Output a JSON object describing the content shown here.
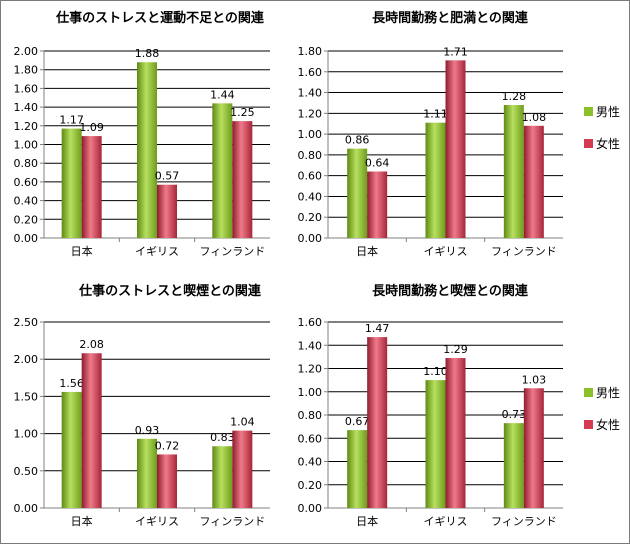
{
  "colors": {
    "male": "#8cc02a",
    "female": "#d43a52",
    "grid": "#000000",
    "axis": "#808080"
  },
  "chart_data": [
    {
      "type": "bar",
      "title": "仕事のストレスと運動不足との関連",
      "categories": [
        "日本",
        "イギリス",
        "フィンランド"
      ],
      "ylim": [
        0,
        2.0
      ],
      "yticks": [
        "0.00",
        "0.20",
        "0.40",
        "0.60",
        "0.80",
        "1.00",
        "1.20",
        "1.40",
        "1.60",
        "1.80",
        "2.00"
      ],
      "series": [
        {
          "name": "男性",
          "values": [
            1.17,
            1.88,
            1.44
          ],
          "labels": [
            "1.17",
            "1.88",
            "1.44"
          ]
        },
        {
          "name": "女性",
          "values": [
            1.09,
            0.57,
            1.25
          ],
          "labels": [
            "1.09",
            "0.57",
            "1.25"
          ]
        }
      ],
      "legend": "none",
      "grid": true
    },
    {
      "type": "bar",
      "title": "長時間勤務と肥満との関連",
      "categories": [
        "日本",
        "イギリス",
        "フィンランド"
      ],
      "ylim": [
        0,
        1.8
      ],
      "yticks": [
        "0.00",
        "0.20",
        "0.40",
        "0.60",
        "0.80",
        "1.00",
        "1.20",
        "1.40",
        "1.60",
        "1.80"
      ],
      "series": [
        {
          "name": "男性",
          "values": [
            0.86,
            1.11,
            1.28
          ],
          "labels": [
            "0.86",
            "1.11",
            "1.28"
          ]
        },
        {
          "name": "女性",
          "values": [
            0.64,
            1.71,
            1.08
          ],
          "labels": [
            "0.64",
            "1.71",
            "1.08"
          ]
        }
      ],
      "legend": "right",
      "grid": true
    },
    {
      "type": "bar",
      "title": "仕事のストレスと喫煙との関連",
      "categories": [
        "日本",
        "イギリス",
        "フィンランド"
      ],
      "ylim": [
        0,
        2.5
      ],
      "yticks": [
        "0.00",
        "0.50",
        "1.00",
        "1.50",
        "2.00",
        "2.50"
      ],
      "series": [
        {
          "name": "男性",
          "values": [
            1.56,
            0.93,
            0.83
          ],
          "labels": [
            "1.56",
            "0.93",
            "0.83"
          ]
        },
        {
          "name": "女性",
          "values": [
            2.08,
            0.72,
            1.04
          ],
          "labels": [
            "2.08",
            "0.72",
            "1.04"
          ]
        }
      ],
      "legend": "none",
      "grid": true
    },
    {
      "type": "bar",
      "title": "長時間勤務と喫煙との関連",
      "categories": [
        "日本",
        "イギリス",
        "フィンランド"
      ],
      "ylim": [
        0,
        1.6
      ],
      "yticks": [
        "0.00",
        "0.20",
        "0.40",
        "0.60",
        "0.80",
        "1.00",
        "1.20",
        "1.40",
        "1.60"
      ],
      "series": [
        {
          "name": "男性",
          "values": [
            0.67,
            1.1,
            0.73
          ],
          "labels": [
            "0.67",
            "1.10",
            "0.73"
          ]
        },
        {
          "name": "女性",
          "values": [
            1.47,
            1.29,
            1.03
          ],
          "labels": [
            "1.47",
            "1.29",
            "1.03"
          ]
        }
      ],
      "legend": "right",
      "grid": true
    }
  ]
}
